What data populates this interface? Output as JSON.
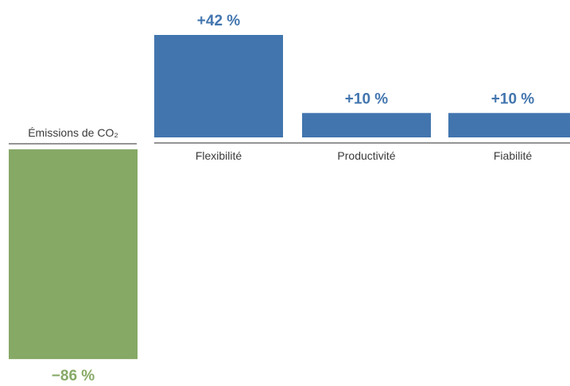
{
  "chart_data": {
    "type": "bar",
    "categories": [
      "Émissions de CO₂",
      "Flexibilité",
      "Productivité",
      "Fiabilité"
    ],
    "values": [
      -86,
      42,
      10,
      10
    ],
    "unit": "%",
    "value_labels": [
      "−86 %",
      "+42 %",
      "+10 %",
      "+10 %"
    ],
    "colors": {
      "positive": "#4275ae",
      "negative": "#86a966"
    },
    "title": "",
    "xlabel": "",
    "ylabel": "",
    "grid": false,
    "legend": "none"
  }
}
